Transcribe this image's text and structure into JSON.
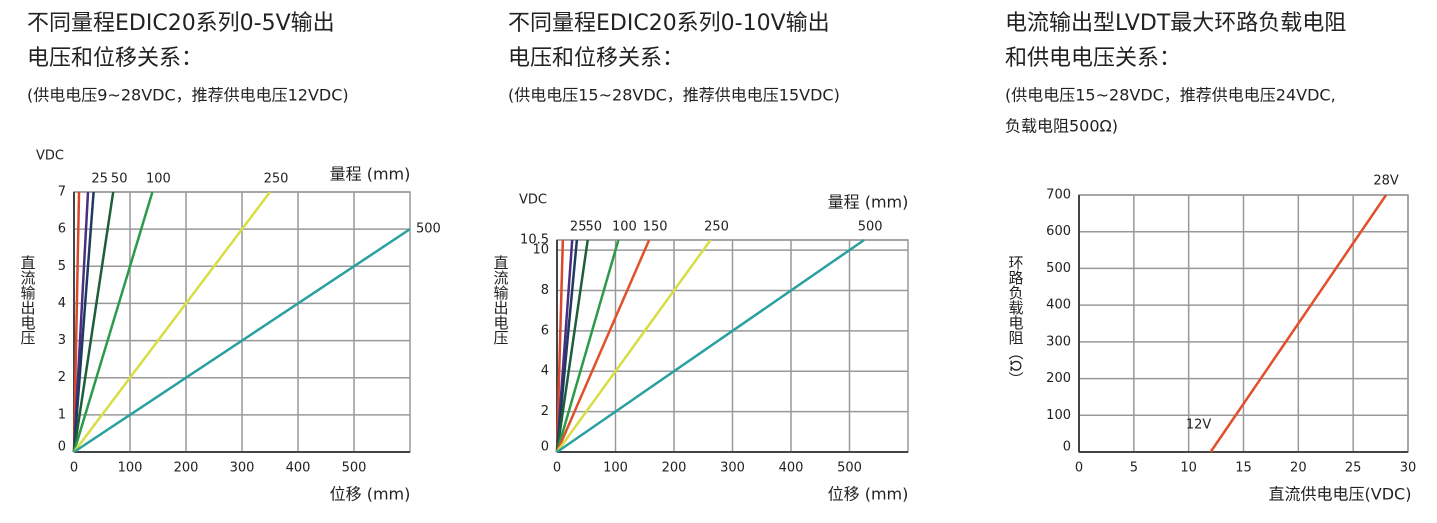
{
  "chart_data": [
    {
      "type": "line",
      "title": [
        "不同量程EDIC20系列0-5V输出",
        "电压和位移关系："
      ],
      "subtitle": [
        "(供电电压9~28VDC，推荐供电电压12VDC)"
      ],
      "y_unit": "VDC",
      "y_label": "直流输出电压",
      "x_label": "位移 (mm)",
      "legend_title": "量程 (mm)",
      "xlim": [
        0,
        600
      ],
      "xticks": [
        0,
        100,
        200,
        300,
        400,
        500
      ],
      "ylim": [
        0,
        7
      ],
      "yticks": [
        0,
        1,
        2,
        3,
        4,
        5,
        6,
        7
      ],
      "grid": true,
      "series": [
        {
          "name": null,
          "color": "#d9482b",
          "x": [
            0,
            9
          ],
          "values": [
            0,
            7
          ]
        },
        {
          "name": null,
          "color": "#4b2e83",
          "x": [
            0,
            25
          ],
          "values": [
            0,
            7
          ]
        },
        {
          "name": "25",
          "color": "#1f3a5f",
          "x": [
            0,
            35
          ],
          "values": [
            0,
            7
          ]
        },
        {
          "name": "50",
          "color": "#1e5e3a",
          "x": [
            0,
            70
          ],
          "values": [
            0,
            7
          ]
        },
        {
          "name": "100",
          "color": "#2a9b4a",
          "x": [
            0,
            140
          ],
          "values": [
            0,
            7
          ]
        },
        {
          "name": "250",
          "color": "#d9dd44",
          "x": [
            0,
            350
          ],
          "values": [
            0,
            7
          ]
        },
        {
          "name": "500",
          "color": "#2aa0a0",
          "x": [
            0,
            600
          ],
          "values": [
            0,
            6
          ]
        }
      ]
    },
    {
      "type": "line",
      "title": [
        "不同量程EDIC20系列0-10V输出",
        "电压和位移关系："
      ],
      "subtitle": [
        "(供电电压15~28VDC，推荐供电电压15VDC)"
      ],
      "y_unit": "VDC",
      "y_label": "直流输出电压",
      "x_label": "位移 (mm)",
      "legend_title": "量程 (mm)",
      "xlim": [
        0,
        600
      ],
      "xticks": [
        0,
        100,
        200,
        300,
        400,
        500
      ],
      "ylim": [
        0,
        10.5
      ],
      "yticks": [
        0,
        2,
        4,
        6,
        8,
        10,
        10.5
      ],
      "grid": true,
      "series": [
        {
          "name": null,
          "color": "#d9482b",
          "x": [
            0,
            10
          ],
          "values": [
            0,
            10.5
          ]
        },
        {
          "name": "25",
          "color": "#4b2e83",
          "x": [
            0,
            26
          ],
          "values": [
            0,
            10.5
          ]
        },
        {
          "name": null,
          "color": "#1f3a5f",
          "x": [
            0,
            34
          ],
          "values": [
            0,
            10.5
          ]
        },
        {
          "name": "50",
          "color": "#1e5e3a",
          "x": [
            0,
            52.5
          ],
          "values": [
            0,
            10.5
          ]
        },
        {
          "name": "100",
          "color": "#2a9b4a",
          "x": [
            0,
            105
          ],
          "values": [
            0,
            10.5
          ]
        },
        {
          "name": "150",
          "color": "#e0502a",
          "x": [
            0,
            157.5
          ],
          "values": [
            0,
            10.5
          ]
        },
        {
          "name": "250",
          "color": "#d9dd44",
          "x": [
            0,
            262.5
          ],
          "values": [
            0,
            10.5
          ]
        },
        {
          "name": "500",
          "color": "#2aa0a0",
          "x": [
            0,
            525
          ],
          "values": [
            0,
            10.5
          ]
        }
      ]
    },
    {
      "type": "line",
      "title": [
        "电流输出型LVDT最大环路负载电阻",
        "和供电电压关系："
      ],
      "subtitle": [
        "(供电电压15~28VDC，推荐供电电压24VDC,",
        "负载电阻500Ω)"
      ],
      "y_label": "环路负载电阻（Ω）",
      "x_label": "直流供电电压(VDC)",
      "xlim": [
        0,
        30
      ],
      "xticks": [
        0,
        5,
        10,
        15,
        20,
        25,
        30
      ],
      "ylim": [
        0,
        700
      ],
      "yticks": [
        0,
        100,
        200,
        300,
        400,
        500,
        600,
        700
      ],
      "grid": true,
      "series": [
        {
          "name": null,
          "color": "#e0502a",
          "x": [
            12,
            28
          ],
          "values": [
            0,
            700
          ],
          "x_labels": [
            "12V",
            "28V"
          ]
        }
      ]
    }
  ]
}
